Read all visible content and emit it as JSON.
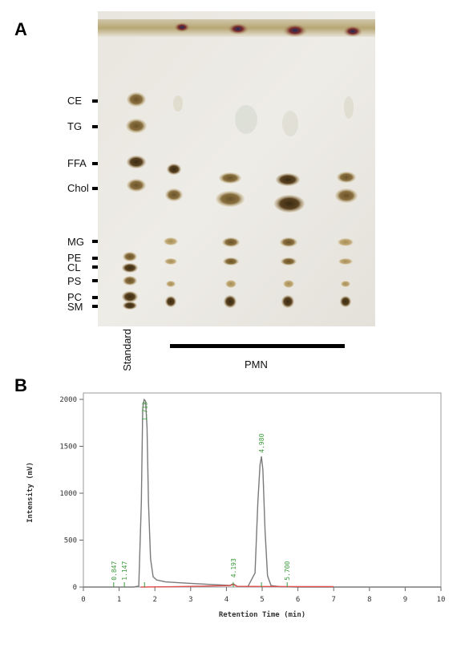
{
  "panel_a": {
    "letter": "A",
    "lipid_labels": [
      "CE",
      "TG",
      "FFA",
      "Chol",
      "MG",
      "PE",
      "CL",
      "PS",
      "PC",
      "SM"
    ],
    "standard_label": "Standard",
    "pmn_label": "PMN"
  },
  "panel_b": {
    "letter": "B"
  },
  "chart_data": {
    "type": "line",
    "xlabel": "Retention Time (min)",
    "ylabel": "Intensity (mV)",
    "xlim": [
      0,
      10
    ],
    "ylim": [
      0,
      2000
    ],
    "x_ticks": [
      0,
      1,
      2,
      3,
      4,
      5,
      6,
      7,
      8,
      9,
      10
    ],
    "y_ticks": [
      0,
      500,
      1000,
      1500,
      2000
    ],
    "grid": false,
    "series": [
      {
        "color": "#7a7a7a",
        "x": [
          0.0,
          1.0,
          1.4,
          1.55,
          1.62,
          1.66,
          1.7,
          1.74,
          1.78,
          1.82,
          1.88,
          1.95,
          2.05,
          2.3,
          2.7,
          3.2,
          3.7,
          4.1,
          4.19,
          4.3,
          4.6,
          4.8,
          4.88,
          4.94,
          4.98,
          5.02,
          5.08,
          5.15,
          5.25,
          5.5,
          6.0,
          7.0,
          8.0,
          9.0,
          10.0
        ],
        "y": [
          0,
          0,
          0,
          10,
          900,
          1900,
          2000,
          1980,
          1700,
          900,
          300,
          110,
          75,
          55,
          45,
          35,
          25,
          18,
          35,
          8,
          5,
          150,
          900,
          1300,
          1390,
          1250,
          600,
          120,
          15,
          3,
          0,
          0,
          0,
          0,
          0
        ]
      },
      {
        "color": "#e05050",
        "x": [
          1.6,
          2.5,
          4.1,
          4.19,
          4.3,
          5.0,
          6.0,
          7.0
        ],
        "y": [
          0,
          3,
          15,
          28,
          8,
          6,
          5,
          5
        ]
      }
    ],
    "peak_labels": [
      {
        "time": 0.847,
        "text": "0.847"
      },
      {
        "time": 1.147,
        "text": "1.147"
      },
      {
        "time": 1.71,
        "text": "1.713"
      },
      {
        "time": 4.193,
        "text": "4.193"
      },
      {
        "time": 4.98,
        "text": "4.980"
      },
      {
        "time": 5.7,
        "text": "5.700"
      }
    ],
    "peak_label_color": "#3a9a3a"
  }
}
